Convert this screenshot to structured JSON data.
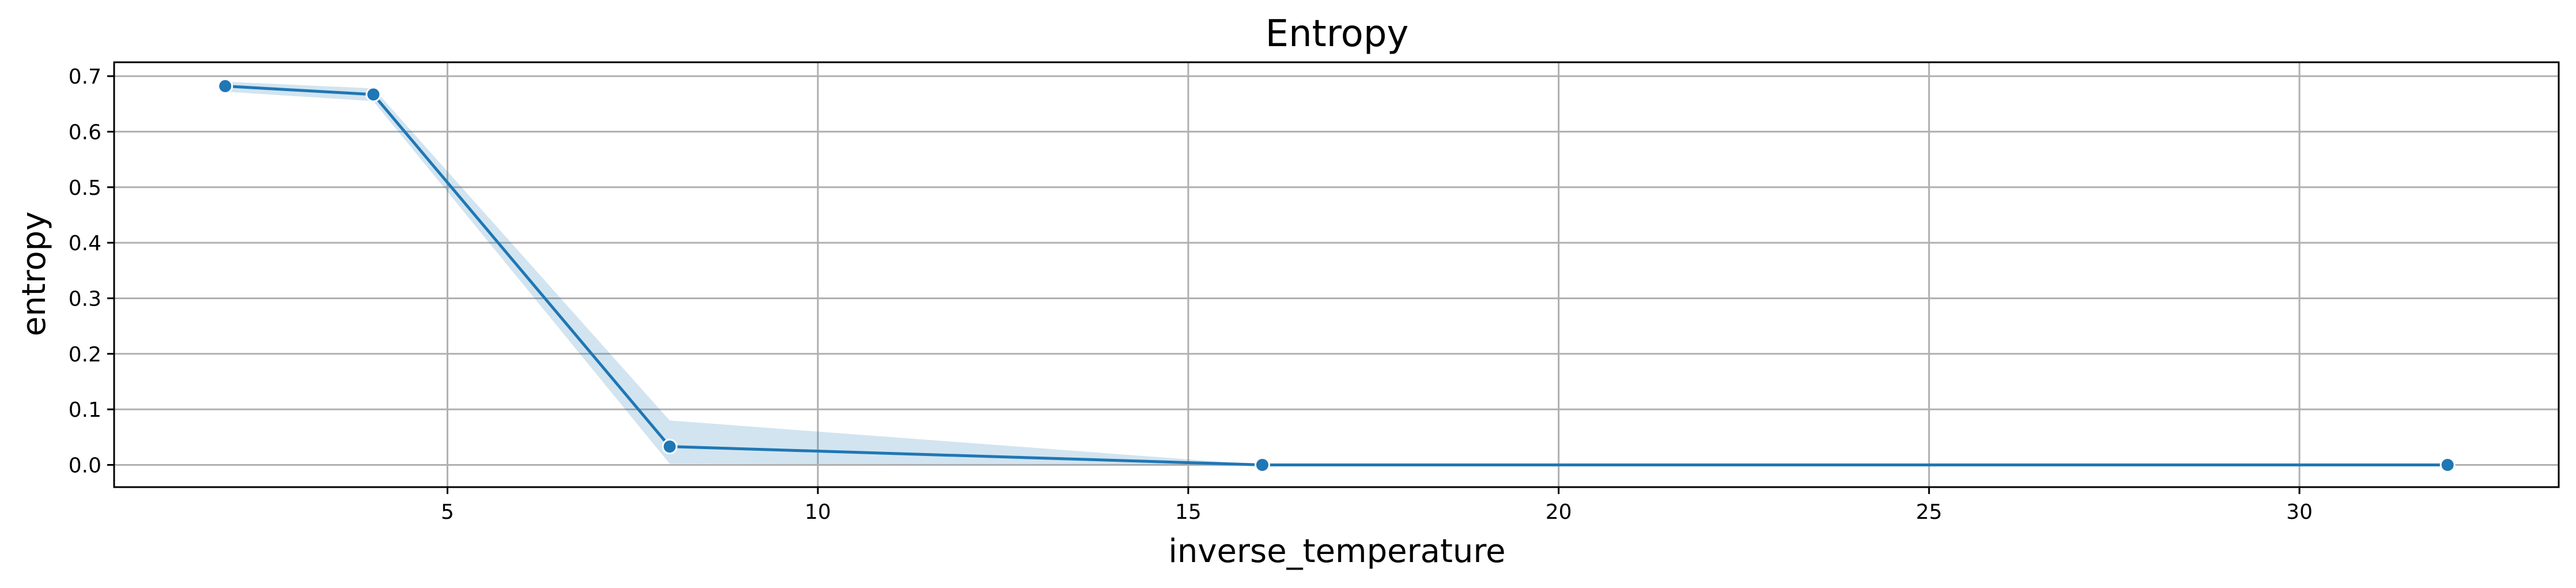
{
  "chart_data": {
    "type": "line",
    "title": "Entropy",
    "xlabel": "inverse_temperature",
    "ylabel": "entropy",
    "xlim": [
      0.5,
      33.5
    ],
    "ylim": [
      -0.04,
      0.725
    ],
    "x_ticks": [
      5,
      10,
      15,
      20,
      25,
      30
    ],
    "y_ticks": [
      0.0,
      0.1,
      0.2,
      0.3,
      0.4,
      0.5,
      0.6,
      0.7
    ],
    "grid": true,
    "series": [
      {
        "x": [
          2,
          4,
          8,
          16,
          32
        ],
        "y": [
          0.682,
          0.667,
          0.033,
          0.0,
          0.0
        ],
        "ci_lower": [
          0.672,
          0.655,
          0.002,
          0.0,
          0.0
        ],
        "ci_upper": [
          0.69,
          0.678,
          0.08,
          0.0,
          0.0
        ],
        "marker": "circle"
      }
    ],
    "colors": {
      "line": "#1f77b4",
      "band": "#1f77b4",
      "grid": "#b0b0b0",
      "marker_edge": "#ffffff"
    }
  }
}
